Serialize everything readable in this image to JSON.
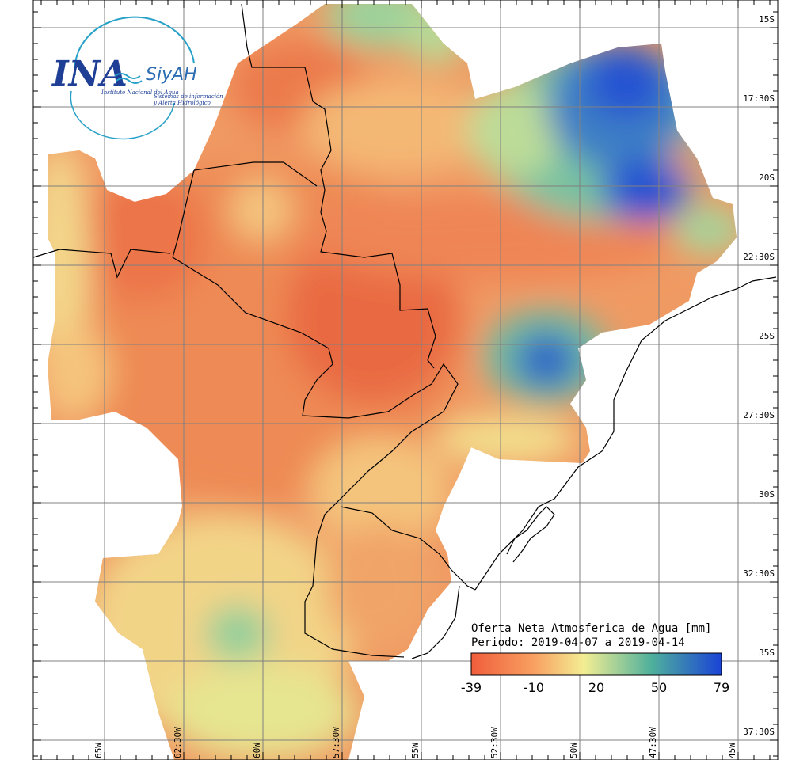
{
  "logo": {
    "brand": "INA",
    "product": "SiyAH",
    "institute": "Instituto Nacional del Agua",
    "subtitle_line1": "Sistemas de información",
    "subtitle_line2": "y Alerta Hidrológico"
  },
  "title": {
    "line1": "Oferta Neta Atmosferica de Agua [mm]",
    "line2": "Periodo: 2019-04-07 a 2019-04-14"
  },
  "colorbar": {
    "ticks": [
      "-39",
      "-10",
      "20",
      "50",
      "79"
    ],
    "colors": [
      "#f05d3b",
      "#f8a061",
      "#f3ee93",
      "#4fb09c",
      "#1a43d6"
    ]
  },
  "latitude_labels": [
    "15S",
    "17:30S",
    "20S",
    "22:30S",
    "25S",
    "27:30S",
    "30S",
    "32:30S",
    "35S",
    "37:30S"
  ],
  "longitude_labels": [
    "65W",
    "62:30W",
    "60W",
    "57:30W",
    "55W",
    "52:30W",
    "50W",
    "47:30W",
    "45W"
  ]
}
